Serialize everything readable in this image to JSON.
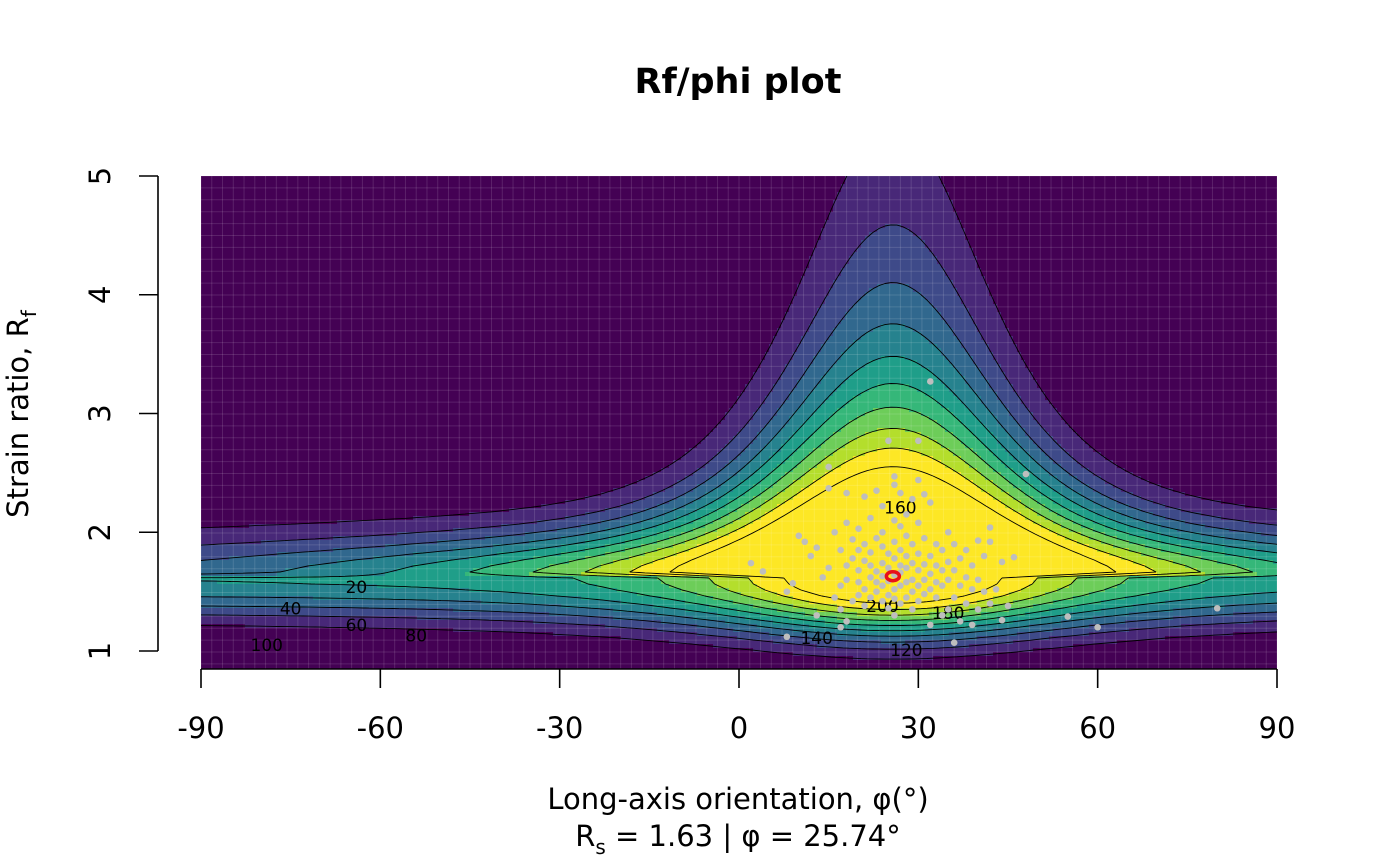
{
  "chart_data": {
    "type": "heatmap",
    "title": "Rf/phi plot",
    "xlabel": "Long-axis orientation, φ(°)",
    "ylabel_main": "Strain ratio, R",
    "ylabel_sub": "f",
    "subtitle": {
      "rs_main": "R",
      "rs_sub": "s",
      "rs_value": " = 1.63",
      "separator": " | ",
      "phi_symbol": "φ",
      "phi_value": " = 25.74°"
    },
    "xlim": [
      -90,
      90
    ],
    "ylim": [
      1,
      5
    ],
    "x_ticks": [
      -90,
      -60,
      -30,
      0,
      30,
      60,
      90
    ],
    "x_tick_labels": [
      "-90",
      "-60",
      "-30",
      "0",
      "30",
      "60",
      "90"
    ],
    "y_ticks": [
      1,
      2,
      3,
      4,
      5
    ],
    "y_tick_labels": [
      "1",
      "2",
      "3",
      "4",
      "5"
    ],
    "colormap": "viridis",
    "colors": [
      "#440154",
      "#482878",
      "#3E4A89",
      "#31688E",
      "#26828E",
      "#1F9E89",
      "#35B779",
      "#6DCD59",
      "#B4DE2C",
      "#FDE725"
    ],
    "grid": true,
    "contour_levels": [
      20,
      40,
      60,
      80,
      100,
      120,
      140,
      160,
      180,
      200
    ],
    "contour_labels": [
      {
        "text": "20",
        "x": -64,
        "y": 1.54
      },
      {
        "text": "40",
        "x": -75,
        "y": 1.36
      },
      {
        "text": "60",
        "x": -64,
        "y": 1.22
      },
      {
        "text": "80",
        "x": -54,
        "y": 1.13
      },
      {
        "text": "100",
        "x": -79,
        "y": 1.05
      },
      {
        "text": "120",
        "x": 28,
        "y": 1.01
      },
      {
        "text": "140",
        "x": 13,
        "y": 1.11
      },
      {
        "text": "160",
        "x": 27,
        "y": 2.21
      },
      {
        "text": "180",
        "x": 35,
        "y": 1.32
      },
      {
        "text": "200",
        "x": 24,
        "y": 1.38
      }
    ],
    "mean": {
      "phi": 25.74,
      "rs": 1.63,
      "color": "#E8101A"
    },
    "points_color": "#BEBEBE",
    "points": [
      [
        2,
        1.74
      ],
      [
        4,
        1.67
      ],
      [
        8,
        1.12
      ],
      [
        8,
        1.5
      ],
      [
        9,
        1.57
      ],
      [
        10,
        1.97
      ],
      [
        11,
        1.92
      ],
      [
        12,
        1.8
      ],
      [
        13,
        1.3
      ],
      [
        13,
        1.87
      ],
      [
        14,
        1.62
      ],
      [
        15,
        1.7
      ],
      [
        15,
        2.37
      ],
      [
        15,
        2.55
      ],
      [
        16,
        1.45
      ],
      [
        16,
        2.0
      ],
      [
        17,
        1.2
      ],
      [
        17,
        1.35
      ],
      [
        17,
        1.55
      ],
      [
        17,
        1.85
      ],
      [
        18,
        1.25
      ],
      [
        18,
        1.6
      ],
      [
        18,
        2.08
      ],
      [
        18,
        2.33
      ],
      [
        18,
        1.72
      ],
      [
        19,
        1.42
      ],
      [
        19,
        1.78
      ],
      [
        19,
        1.94
      ],
      [
        20,
        1.47
      ],
      [
        20,
        1.58
      ],
      [
        20,
        1.85
      ],
      [
        20,
        2.03
      ],
      [
        20,
        1.68
      ],
      [
        21,
        1.38
      ],
      [
        21,
        1.52
      ],
      [
        21,
        1.76
      ],
      [
        21,
        1.9
      ],
      [
        21,
        2.3
      ],
      [
        22,
        1.45
      ],
      [
        22,
        1.62
      ],
      [
        22,
        1.72
      ],
      [
        22,
        1.83
      ],
      [
        22,
        2.12
      ],
      [
        23,
        1.5
      ],
      [
        23,
        1.58
      ],
      [
        23,
        1.67
      ],
      [
        23,
        1.95
      ],
      [
        23,
        2.35
      ],
      [
        24,
        1.42
      ],
      [
        24,
        1.55
      ],
      [
        24,
        1.63
      ],
      [
        24,
        1.74
      ],
      [
        24,
        1.88
      ],
      [
        24,
        2.0
      ],
      [
        24,
        2.22
      ],
      [
        25,
        1.36
      ],
      [
        25,
        1.47
      ],
      [
        25,
        1.59
      ],
      [
        25,
        1.7
      ],
      [
        25,
        1.82
      ],
      [
        25,
        2.77
      ],
      [
        26,
        1.3
      ],
      [
        26,
        1.44
      ],
      [
        26,
        1.52
      ],
      [
        26,
        1.64
      ],
      [
        26,
        1.78
      ],
      [
        26,
        1.92
      ],
      [
        26,
        2.1
      ],
      [
        26,
        2.4
      ],
      [
        26,
        2.47
      ],
      [
        27,
        1.4
      ],
      [
        27,
        1.55
      ],
      [
        27,
        1.66
      ],
      [
        27,
        1.72
      ],
      [
        27,
        1.85
      ],
      [
        27,
        2.05
      ],
      [
        27,
        2.33
      ],
      [
        28,
        1.45
      ],
      [
        28,
        1.58
      ],
      [
        28,
        1.7
      ],
      [
        28,
        1.8
      ],
      [
        28,
        1.97
      ],
      [
        28,
        2.15
      ],
      [
        29,
        1.35
      ],
      [
        29,
        1.5
      ],
      [
        29,
        1.6
      ],
      [
        29,
        1.74
      ],
      [
        29,
        1.9
      ],
      [
        29,
        2.28
      ],
      [
        30,
        1.42
      ],
      [
        30,
        1.55
      ],
      [
        30,
        1.68
      ],
      [
        30,
        1.82
      ],
      [
        30,
        2.08
      ],
      [
        30,
        2.44
      ],
      [
        30,
        2.77
      ],
      [
        31,
        1.48
      ],
      [
        31,
        1.6
      ],
      [
        31,
        1.73
      ],
      [
        31,
        1.95
      ],
      [
        31,
        2.32
      ],
      [
        32,
        1.22
      ],
      [
        32,
        1.52
      ],
      [
        32,
        1.65
      ],
      [
        32,
        1.8
      ],
      [
        32,
        2.25
      ],
      [
        32,
        3.27
      ],
      [
        33,
        1.45
      ],
      [
        33,
        1.58
      ],
      [
        33,
        1.72
      ],
      [
        33,
        1.9
      ],
      [
        34,
        1.3
      ],
      [
        34,
        1.55
      ],
      [
        34,
        1.68
      ],
      [
        34,
        1.85
      ],
      [
        35,
        1.35
      ],
      [
        35,
        1.6
      ],
      [
        35,
        1.75
      ],
      [
        35,
        2.0
      ],
      [
        36,
        1.07
      ],
      [
        36,
        1.45
      ],
      [
        36,
        1.68
      ],
      [
        36,
        1.9
      ],
      [
        37,
        1.25
      ],
      [
        37,
        1.55
      ],
      [
        37,
        1.78
      ],
      [
        38,
        1.4
      ],
      [
        38,
        1.62
      ],
      [
        38,
        1.85
      ],
      [
        39,
        1.22
      ],
      [
        39,
        1.52
      ],
      [
        39,
        1.72
      ],
      [
        40,
        1.35
      ],
      [
        40,
        1.6
      ],
      [
        40,
        1.93
      ],
      [
        41,
        1.5
      ],
      [
        41,
        1.8
      ],
      [
        42,
        1.4
      ],
      [
        42,
        1.92
      ],
      [
        42,
        2.04
      ],
      [
        43,
        1.52
      ],
      [
        44,
        1.26
      ],
      [
        44,
        1.75
      ],
      [
        45,
        1.38
      ],
      [
        46,
        1.79
      ],
      [
        48,
        2.49
      ],
      [
        55,
        1.29
      ],
      [
        60,
        1.2
      ],
      [
        80,
        1.36
      ]
    ]
  }
}
